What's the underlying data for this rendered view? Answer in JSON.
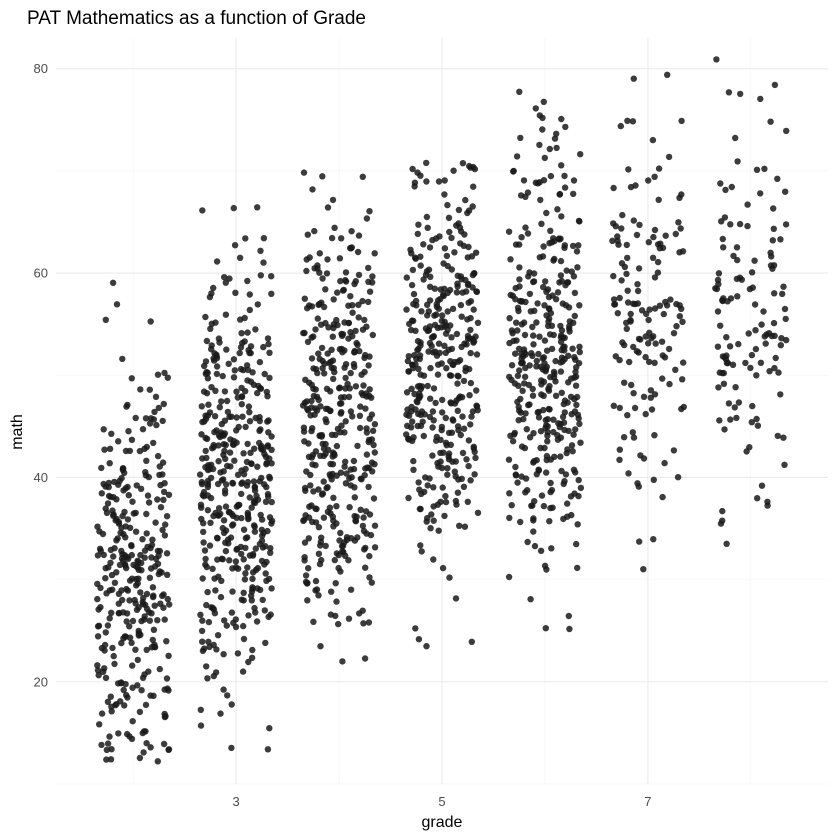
{
  "chart_data": {
    "type": "scatter",
    "title": "PAT Mathematics as a function of Grade",
    "xlabel": "grade",
    "ylabel": "math",
    "x_ticks": [
      3,
      5,
      7
    ],
    "y_ticks": [
      20,
      40,
      60,
      80
    ],
    "xlim": [
      1.25,
      8.75
    ],
    "ylim": [
      10,
      83
    ],
    "jitter_width": 0.35,
    "point_color": "#1a1a1a",
    "point_opacity": 0.85,
    "grid": true,
    "legend": "none",
    "groups": [
      {
        "grade": 2,
        "n": 330,
        "y_min": 12,
        "y_max": 60,
        "mean": 31
      },
      {
        "grade": 3,
        "n": 420,
        "y_min": 13,
        "y_max": 67,
        "mean": 41
      },
      {
        "grade": 4,
        "n": 380,
        "y_min": 18,
        "y_max": 70,
        "mean": 46
      },
      {
        "grade": 5,
        "n": 360,
        "y_min": 23,
        "y_max": 71,
        "mean": 50
      },
      {
        "grade": 6,
        "n": 370,
        "y_min": 24,
        "y_max": 78,
        "mean": 52
      },
      {
        "grade": 7,
        "n": 150,
        "y_min": 31,
        "y_max": 81,
        "mean": 55
      },
      {
        "grade": 8,
        "n": 130,
        "y_min": 26,
        "y_max": 81,
        "mean": 57
      }
    ]
  }
}
